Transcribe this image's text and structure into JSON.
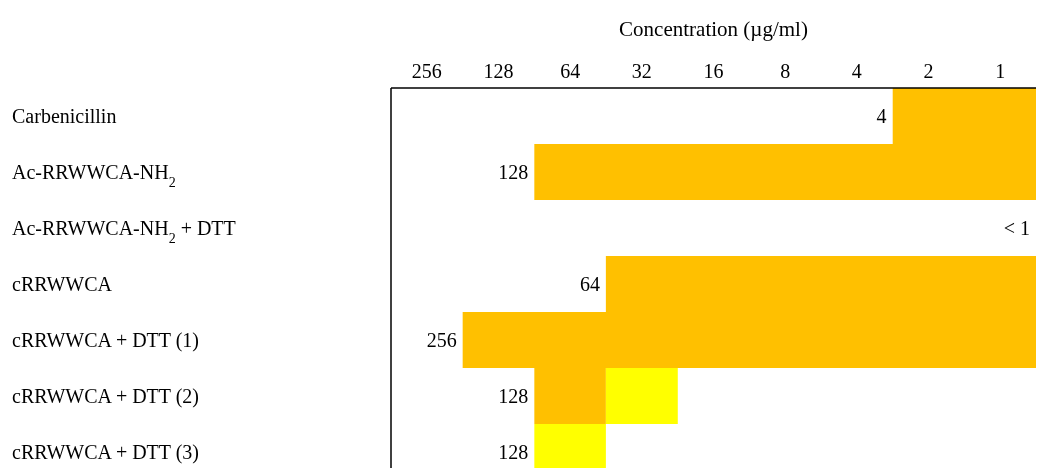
{
  "chart_data": {
    "type": "bar",
    "orientation": "horizontal",
    "log": "x",
    "xlabel": "Concentration (µg/ml)",
    "categories": [
      "Carbenicillin",
      "Ac-RRWWCA-NH$_{2}$",
      "Ac-RRWWCA-NH$_{2}$ + DTT",
      "cRRWWCA",
      "cRRWWCA + DTT (1)",
      "cRRWWCA + DTT (2)",
      "cRRWWCA + DTT (3)"
    ],
    "series": [
      {
        "color": "#ffc000",
        "base": [
          0.707,
          0.707,
          null,
          0.707,
          0.707,
          45.3,
          null
        ],
        "values": [
          2.12,
          89.8,
          null,
          44.6,
          180.3,
          45.2,
          null
        ]
      },
      {
        "color": "#ffff00",
        "base": [
          null,
          null,
          null,
          null,
          null,
          22.6,
          45.3
        ],
        "values": [
          null,
          null,
          null,
          null,
          null,
          22.7,
          45.2
        ]
      }
    ],
    "xlim": [
      362,
      0.707
    ],
    "xticks": [
      256,
      128,
      64,
      32,
      16,
      8,
      4,
      2,
      1
    ],
    "annotations": [
      {
        "text": "4",
        "x": 2.83,
        "y": "Carbenicillin"
      },
      {
        "text": "128",
        "x": 90.5,
        "y": "Ac-RRWWCA-NH$_{2}$"
      },
      {
        "text": "< 1",
        "x": 0.707,
        "y": "Ac-RRWWCA-NH$_{2}$ + DTT"
      },
      {
        "text": "64",
        "x": 45.3,
        "y": "cRRWWCA"
      },
      {
        "text": "256",
        "x": 181,
        "y": "cRRWWCA + DTT (1)"
      },
      {
        "text": "128",
        "x": 90.5,
        "y": "cRRWWCA + DTT (2)"
      },
      {
        "text": "128",
        "x": 90.5,
        "y": "cRRWWCA + DTT (3)"
      }
    ]
  }
}
